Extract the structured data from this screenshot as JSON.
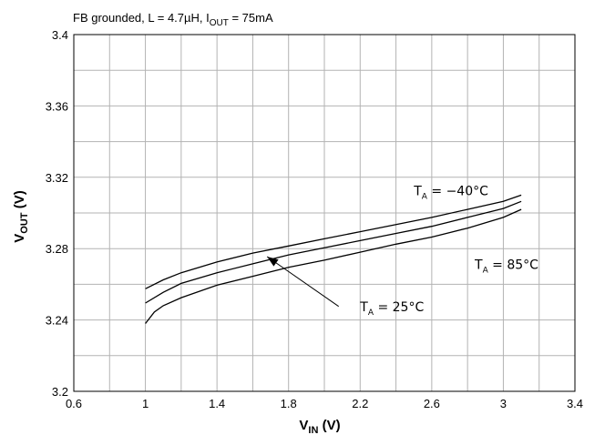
{
  "chart_data": {
    "type": "line",
    "conditions": {
      "prefix": "FB grounded,  L = 4.7µH,  I",
      "subscript": "OUT",
      "suffix": " = 75mA"
    },
    "xlabel": {
      "main": "V",
      "sub": "IN",
      "unit": " (V)"
    },
    "ylabel": {
      "main": "V",
      "sub": "OUT",
      "unit": " (V)"
    },
    "xlim": [
      0.6,
      3.4
    ],
    "ylim": [
      3.2,
      3.4
    ],
    "x_ticks": [
      "0.6",
      "1",
      "1.4",
      "1.8",
      "2.2",
      "2.6",
      "3",
      "3.4"
    ],
    "y_ticks": [
      "3.2",
      "3.24",
      "3.28",
      "3.32",
      "3.36",
      "3.4"
    ],
    "grid": true,
    "series": [
      {
        "name": "T_A = -40°C",
        "x": [
          1.0,
          1.1,
          1.2,
          1.4,
          1.6,
          1.8,
          2.0,
          2.2,
          2.4,
          2.6,
          2.8,
          3.0,
          3.1
        ],
        "y": [
          3.2575,
          3.2625,
          3.2665,
          3.2725,
          3.2775,
          3.2815,
          3.2855,
          3.2895,
          3.2935,
          3.2975,
          3.302,
          3.3065,
          3.31
        ]
      },
      {
        "name": "T_A = 25°C",
        "x": [
          1.0,
          1.1,
          1.2,
          1.4,
          1.6,
          1.8,
          2.0,
          2.2,
          2.4,
          2.6,
          2.8,
          3.0,
          3.1
        ],
        "y": [
          3.2495,
          3.2555,
          3.2605,
          3.2665,
          3.2715,
          3.2765,
          3.2805,
          3.2845,
          3.2885,
          3.2925,
          3.2975,
          3.3025,
          3.3065
        ]
      },
      {
        "name": "T_A = 85°C",
        "x": [
          1.0,
          1.05,
          1.1,
          1.2,
          1.4,
          1.6,
          1.8,
          2.0,
          2.2,
          2.4,
          2.6,
          2.8,
          3.0,
          3.1
        ],
        "y": [
          3.238,
          3.2445,
          3.248,
          3.2525,
          3.2595,
          3.2645,
          3.2695,
          3.2735,
          3.278,
          3.2825,
          3.2865,
          3.2915,
          3.2975,
          3.302
        ]
      }
    ],
    "annotations": [
      {
        "main": "T",
        "sub": "A",
        "text": " = −40°C",
        "x": 2.5,
        "y": 3.31
      },
      {
        "main": "T",
        "sub": "A",
        "text": " = 85°C",
        "x": 2.84,
        "y": 3.2685
      },
      {
        "main": "T",
        "sub": "A",
        "text": " = 25°C",
        "x": 2.2,
        "y": 3.245
      }
    ],
    "arrow": {
      "from": [
        2.08,
        3.2476
      ],
      "to": [
        1.68,
        3.2755
      ]
    },
    "colors": {
      "line": "#000000",
      "grid": "#b3b3b3",
      "frame": "#000000"
    }
  }
}
